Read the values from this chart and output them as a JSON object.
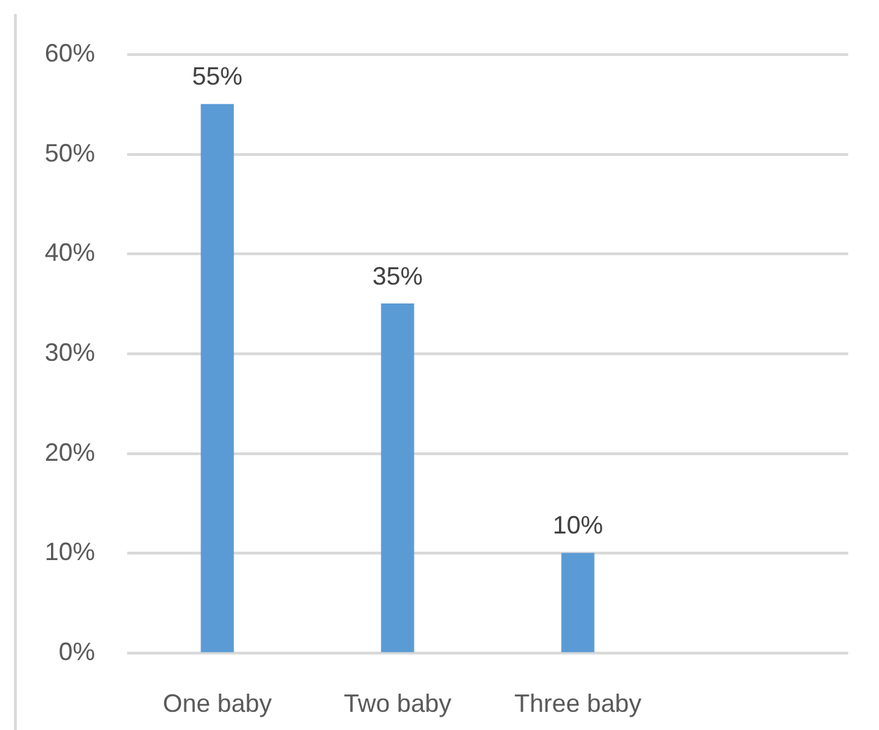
{
  "chart_data": {
    "type": "bar",
    "categories": [
      "One baby",
      "Two baby",
      "Three baby",
      null
    ],
    "values": [
      55,
      35,
      10,
      null
    ],
    "value_labels": [
      "55%",
      "35%",
      "10%",
      null
    ],
    "color": "#5b9bd5",
    "ylim": [
      0,
      60
    ],
    "yticks": [
      {
        "value": 0,
        "label": "0%"
      },
      {
        "value": 10,
        "label": "10%"
      },
      {
        "value": 20,
        "label": "20%"
      },
      {
        "value": 30,
        "label": "30%"
      },
      {
        "value": 40,
        "label": "40%"
      },
      {
        "value": 50,
        "label": "50%"
      },
      {
        "value": 60,
        "label": "60%"
      }
    ],
    "grid": "y"
  }
}
